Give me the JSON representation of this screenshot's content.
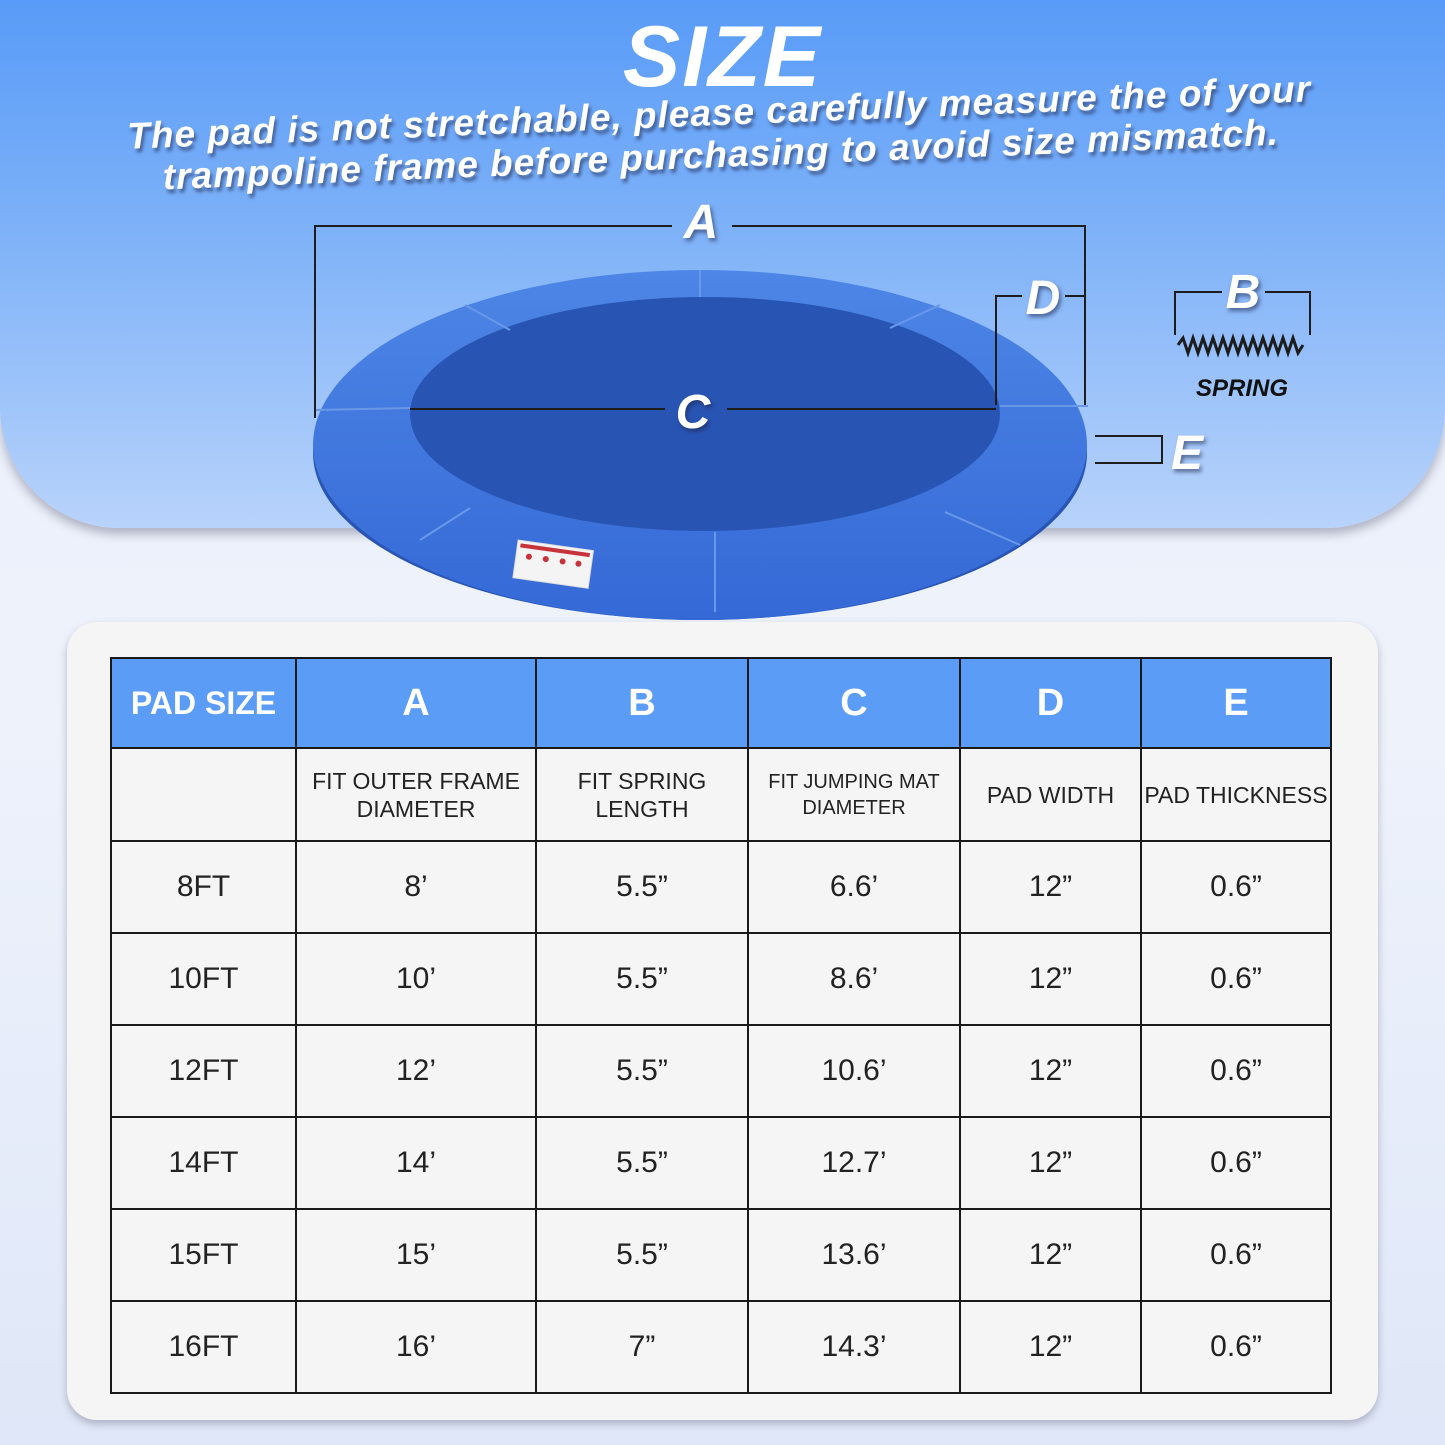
{
  "header": {
    "title": "SIZE",
    "subtitle": "The pad is not stretchable, please carefully measure the of your trampoline frame before purchasing to avoid size mismatch."
  },
  "diagram": {
    "labels": {
      "a": "A",
      "b": "B",
      "c": "C",
      "d": "D",
      "e": "E"
    },
    "spring_label": "SPRING",
    "pad_color": "#3a73db"
  },
  "table": {
    "header_color": "#5b9cf6",
    "headers": [
      "PAD SIZE",
      "A",
      "B",
      "C",
      "D",
      "E"
    ],
    "subheaders": [
      "",
      "FIT OUTER FRAME DIAMETER",
      "FIT SPRING LENGTH",
      "FIT JUMPING MAT DIAMETER",
      "PAD WIDTH",
      "PAD THICKNESS"
    ],
    "rows": [
      [
        "8FT",
        "8’",
        "5.5”",
        "6.6’",
        "12”",
        "0.6”"
      ],
      [
        "10FT",
        "10’",
        "5.5”",
        "8.6’",
        "12”",
        "0.6”"
      ],
      [
        "12FT",
        "12’",
        "5.5”",
        "10.6’",
        "12”",
        "0.6”"
      ],
      [
        "14FT",
        "14’",
        "5.5”",
        "12.7’",
        "12”",
        "0.6”"
      ],
      [
        "15FT",
        "15’",
        "5.5”",
        "13.6’",
        "12”",
        "0.6”"
      ],
      [
        "16FT",
        "16’",
        "7”",
        "14.3’",
        "12”",
        "0.6”"
      ]
    ]
  }
}
